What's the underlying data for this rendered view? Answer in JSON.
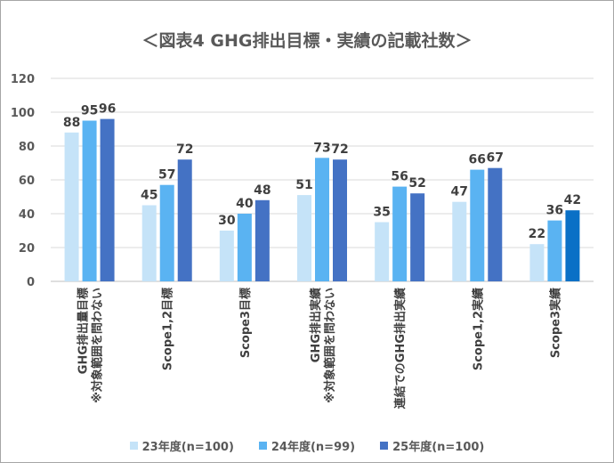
{
  "chart_data": {
    "type": "bar",
    "title": "＜図表4 GHG排出目標・実績の記載社数＞",
    "xlabel": "",
    "ylabel": "",
    "ylim": [
      0,
      120
    ],
    "yticks": [
      "0",
      "20",
      "40",
      "60",
      "80",
      "100",
      "120"
    ],
    "grid": true,
    "legend_position": "bottom",
    "categories": [
      [
        "GHG排出量目標",
        "※対象範囲を問わない"
      ],
      [
        "Scope1,2目標"
      ],
      [
        "Scope3目標"
      ],
      [
        "GHG排出実績",
        "※対象範囲を問わない"
      ],
      [
        "連結でのGHG排出実績"
      ],
      [
        "Scope1,2実績"
      ],
      [
        "Scope3実績"
      ]
    ],
    "series": [
      {
        "name": "23年度(n=100)",
        "color": "#c5e3f8",
        "values": [
          88,
          45,
          30,
          51,
          35,
          47,
          22
        ]
      },
      {
        "name": "24年度(n=99)",
        "color": "#5ab3f2",
        "values": [
          95,
          57,
          40,
          73,
          56,
          66,
          36
        ]
      },
      {
        "name": "25年度(n=100)",
        "color": "#4472c4",
        "values": [
          96,
          72,
          48,
          72,
          52,
          67,
          42
        ]
      }
    ],
    "highlight": {
      "category_index": 6,
      "series_index": 2,
      "color": "#0a70c6"
    }
  }
}
